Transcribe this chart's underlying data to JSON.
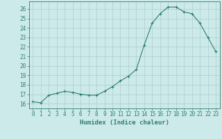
{
  "x": [
    0,
    1,
    2,
    3,
    4,
    5,
    6,
    7,
    8,
    9,
    10,
    11,
    12,
    13,
    14,
    15,
    16,
    17,
    18,
    19,
    20,
    21,
    22,
    23
  ],
  "y": [
    16.2,
    16.1,
    16.9,
    17.1,
    17.3,
    17.2,
    17.0,
    16.9,
    16.9,
    17.3,
    17.8,
    18.4,
    18.9,
    19.6,
    22.2,
    24.5,
    25.5,
    26.2,
    26.2,
    25.7,
    25.5,
    24.5,
    23.0,
    21.5
  ],
  "line_color": "#2e7d6e",
  "marker": "+",
  "bg_color": "#cdeaea",
  "grid_color": "#b0cccc",
  "xlabel": "Humidex (Indice chaleur)",
  "ylim": [
    15.5,
    26.8
  ],
  "yticks": [
    16,
    17,
    18,
    19,
    20,
    21,
    22,
    23,
    24,
    25,
    26
  ],
  "xlim": [
    -0.5,
    23.5
  ],
  "xticks": [
    0,
    1,
    2,
    3,
    4,
    5,
    6,
    7,
    8,
    9,
    10,
    11,
    12,
    13,
    14,
    15,
    16,
    17,
    18,
    19,
    20,
    21,
    22,
    23
  ],
  "tick_fontsize": 5.5,
  "xlabel_fontsize": 6.5
}
